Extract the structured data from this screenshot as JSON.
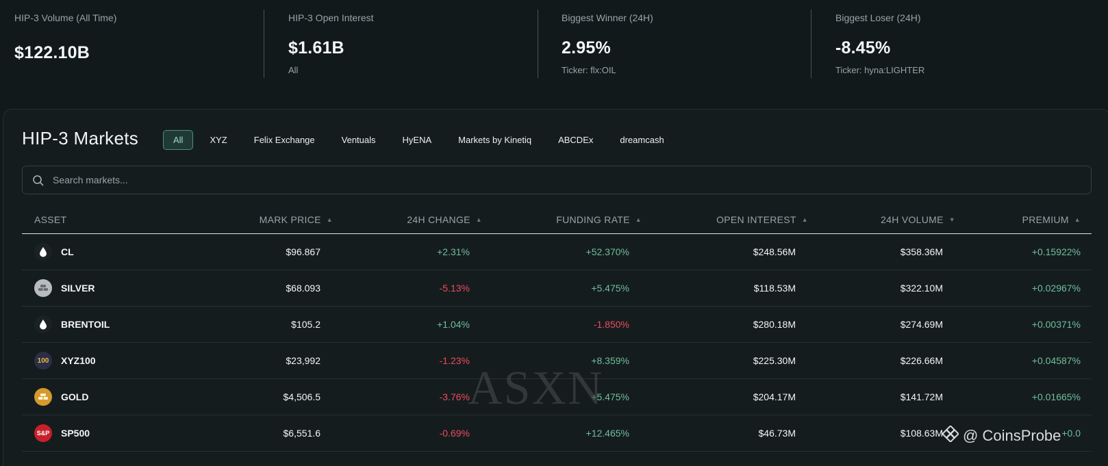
{
  "stats": [
    {
      "label": "HIP-3 Volume (All Time)",
      "value": "$122.10B",
      "sub": ""
    },
    {
      "label": "HIP-3 Open Interest",
      "value": "$1.61B",
      "sub": "All"
    },
    {
      "label": "Biggest Winner (24H)",
      "value": "2.95%",
      "sub": "Ticker: flx:OIL"
    },
    {
      "label": "Biggest Loser (24H)",
      "value": "-8.45%",
      "sub": "Ticker: hyna:LIGHTER"
    }
  ],
  "markets": {
    "title": "HIP-3 Markets",
    "filters": [
      "All",
      "XYZ",
      "Felix Exchange",
      "Ventuals",
      "HyENA",
      "Markets by Kinetiq",
      "ABCDEx",
      "dreamcash"
    ],
    "active_filter": "All",
    "search_placeholder": "Search markets...",
    "columns": {
      "asset": "ASSET",
      "mark_price": "MARK PRICE",
      "change": "24H CHANGE",
      "funding": "FUNDING RATE",
      "oi": "OPEN INTEREST",
      "volume": "24H VOLUME",
      "premium": "PREMIUM"
    },
    "rows": [
      {
        "asset": "CL",
        "icon": "oil-drop-icon",
        "price": "$96.867",
        "change": "+2.31%",
        "funding": "+52.370%",
        "oi": "$248.56M",
        "volume": "$358.36M",
        "premium": "+0.15922%"
      },
      {
        "asset": "SILVER",
        "icon": "silver-bars-icon",
        "price": "$68.093",
        "change": "-5.13%",
        "funding": "+5.475%",
        "oi": "$118.53M",
        "volume": "$322.10M",
        "premium": "+0.02967%"
      },
      {
        "asset": "BRENTOIL",
        "icon": "oil-drop-icon",
        "price": "$105.2",
        "change": "+1.04%",
        "funding": "-1.850%",
        "oi": "$280.18M",
        "volume": "$274.69M",
        "premium": "+0.00371%"
      },
      {
        "asset": "XYZ100",
        "icon": "xyz100-icon",
        "icon_text": "100",
        "price": "$23,992",
        "change": "-1.23%",
        "funding": "+8.359%",
        "oi": "$225.30M",
        "volume": "$226.66M",
        "premium": "+0.04587%"
      },
      {
        "asset": "GOLD",
        "icon": "gold-bars-icon",
        "price": "$4,506.5",
        "change": "-3.76%",
        "funding": "+5.475%",
        "oi": "$204.17M",
        "volume": "$141.72M",
        "premium": "+0.01665%"
      },
      {
        "asset": "SP500",
        "icon": "sp500-icon",
        "icon_text": "S&P",
        "price": "$6,551.6",
        "change": "-0.69%",
        "funding": "+12.465%",
        "oi": "$46.73M",
        "volume": "$108.63M",
        "premium": "+0.0"
      }
    ]
  },
  "watermark": "ASXN",
  "brand": "@ CoinsProbe",
  "colors": {
    "positive": "#6fbf9c",
    "negative": "#ee4b5e",
    "background": "#12191b",
    "accent": "#4f8f80"
  }
}
